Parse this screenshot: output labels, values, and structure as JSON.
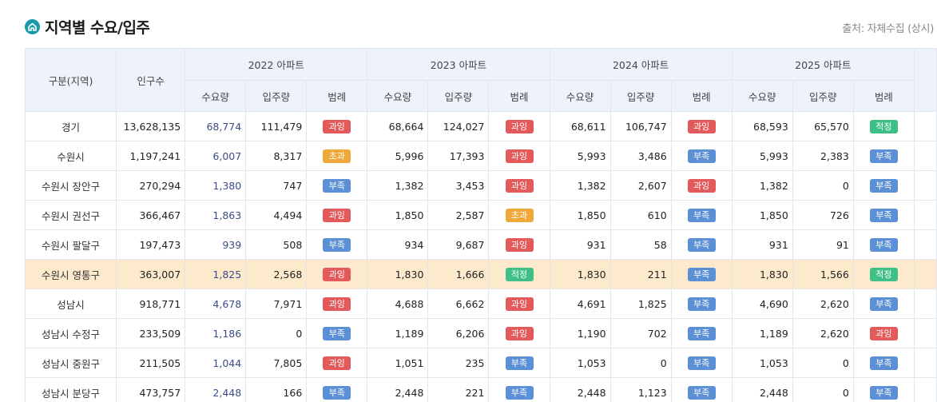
{
  "header": {
    "title": "지역별 수요/입주",
    "source": "출처: 자체수집 (상시)"
  },
  "table": {
    "col_region": "구분(지역)",
    "col_population": "인구수",
    "years": [
      "2022 아파트",
      "2023 아파트",
      "2024 아파트",
      "2025 아파트"
    ],
    "sub_demand": "수요량",
    "sub_supply": "입주량",
    "sub_legend": "범례",
    "highlight_row": 5,
    "rows": [
      {
        "region": "경기",
        "population": "13,628,135",
        "cells": [
          [
            "68,774",
            "111,479",
            "과잉"
          ],
          [
            "68,664",
            "124,027",
            "과잉"
          ],
          [
            "68,611",
            "106,747",
            "과잉"
          ],
          [
            "68,593",
            "65,570",
            "적정"
          ]
        ]
      },
      {
        "region": "수원시",
        "population": "1,197,241",
        "cells": [
          [
            "6,007",
            "8,317",
            "초과"
          ],
          [
            "5,996",
            "17,393",
            "과잉"
          ],
          [
            "5,993",
            "3,486",
            "부족"
          ],
          [
            "5,993",
            "2,383",
            "부족"
          ]
        ]
      },
      {
        "region": "수원시 장안구",
        "population": "270,294",
        "cells": [
          [
            "1,380",
            "747",
            "부족"
          ],
          [
            "1,382",
            "3,453",
            "과잉"
          ],
          [
            "1,382",
            "2,607",
            "과잉"
          ],
          [
            "1,382",
            "0",
            "부족"
          ]
        ]
      },
      {
        "region": "수원시 권선구",
        "population": "366,467",
        "cells": [
          [
            "1,863",
            "4,494",
            "과잉"
          ],
          [
            "1,850",
            "2,587",
            "초과"
          ],
          [
            "1,850",
            "610",
            "부족"
          ],
          [
            "1,850",
            "726",
            "부족"
          ]
        ]
      },
      {
        "region": "수원시 팔달구",
        "population": "197,473",
        "cells": [
          [
            "939",
            "508",
            "부족"
          ],
          [
            "934",
            "9,687",
            "과잉"
          ],
          [
            "931",
            "58",
            "부족"
          ],
          [
            "931",
            "91",
            "부족"
          ]
        ]
      },
      {
        "region": "수원시 영통구",
        "population": "363,007",
        "cells": [
          [
            "1,825",
            "2,568",
            "과잉"
          ],
          [
            "1,830",
            "1,666",
            "적정"
          ],
          [
            "1,830",
            "211",
            "부족"
          ],
          [
            "1,830",
            "1,566",
            "적정"
          ]
        ]
      },
      {
        "region": "성남시",
        "population": "918,771",
        "cells": [
          [
            "4,678",
            "7,971",
            "과잉"
          ],
          [
            "4,688",
            "6,662",
            "과잉"
          ],
          [
            "4,691",
            "1,825",
            "부족"
          ],
          [
            "4,690",
            "2,620",
            "부족"
          ]
        ]
      },
      {
        "region": "성남시 수정구",
        "population": "233,509",
        "cells": [
          [
            "1,186",
            "0",
            "부족"
          ],
          [
            "1,189",
            "6,206",
            "과잉"
          ],
          [
            "1,190",
            "702",
            "부족"
          ],
          [
            "1,189",
            "2,620",
            "과잉"
          ]
        ]
      },
      {
        "region": "성남시 중원구",
        "population": "211,505",
        "cells": [
          [
            "1,044",
            "7,805",
            "과잉"
          ],
          [
            "1,051",
            "235",
            "부족"
          ],
          [
            "1,053",
            "0",
            "부족"
          ],
          [
            "1,053",
            "0",
            "부족"
          ]
        ]
      },
      {
        "region": "성남시 분당구",
        "population": "473,757",
        "cells": [
          [
            "2,448",
            "166",
            "부족"
          ],
          [
            "2,448",
            "221",
            "부족"
          ],
          [
            "2,448",
            "1,123",
            "부족"
          ],
          [
            "2,448",
            "0",
            "부족"
          ]
        ]
      }
    ]
  },
  "badge_colors": {
    "과잉": "#e45a5a",
    "초과": "#efa83a",
    "부족": "#5b8fd6",
    "적정": "#3dbf86"
  }
}
